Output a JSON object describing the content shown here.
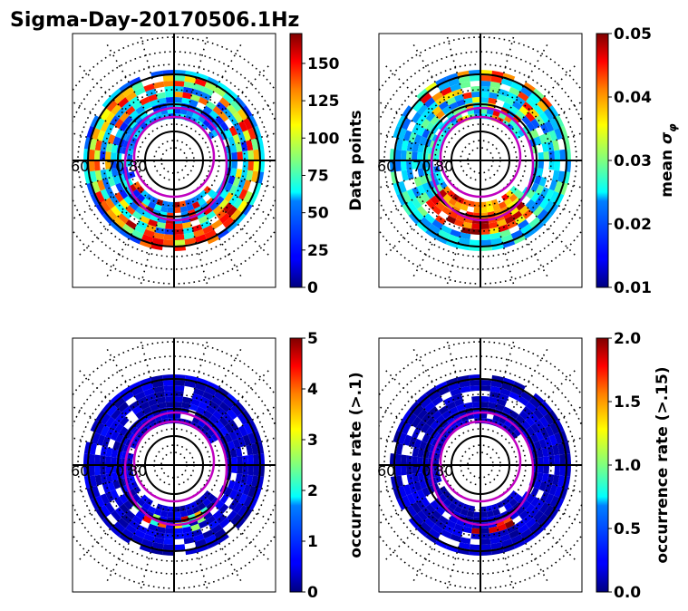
{
  "figure_title": "Sigma-Day-20170506.1Hz",
  "chart_data": [
    {
      "type": "heatmap",
      "projection": "polar",
      "latitude_rings": [
        60,
        70,
        80
      ],
      "ring_labels": [
        "60",
        "70",
        "80"
      ],
      "colorbar": {
        "label": "Data points",
        "min": 0,
        "max": 170,
        "ticks": [
          0,
          25,
          50,
          75,
          100,
          125,
          150
        ],
        "tick_labels": [
          "0",
          "25",
          "50",
          "75",
          "100",
          "125",
          "150"
        ],
        "colormap": "jet"
      },
      "grid": true
    },
    {
      "type": "heatmap",
      "projection": "polar",
      "latitude_rings": [
        60,
        70,
        80
      ],
      "ring_labels": [
        "60",
        "70",
        "80"
      ],
      "colorbar": {
        "label_main": "mean ",
        "label_symbol": "σ",
        "label_sub": "φ",
        "min": 0.01,
        "max": 0.05,
        "ticks": [
          0.01,
          0.02,
          0.03,
          0.04,
          0.05
        ],
        "tick_labels": [
          "0.01",
          "0.02",
          "0.03",
          "0.04",
          "0.05"
        ],
        "colormap": "jet"
      },
      "grid": true
    },
    {
      "type": "heatmap",
      "projection": "polar",
      "latitude_rings": [
        60,
        70,
        80
      ],
      "ring_labels": [
        "60",
        "70",
        "80"
      ],
      "colorbar": {
        "label": "occurrence rate (>.1)",
        "min": 0,
        "max": 5,
        "ticks": [
          0,
          1,
          2,
          3,
          4,
          5
        ],
        "tick_labels": [
          "0",
          "1",
          "2",
          "3",
          "4",
          "5"
        ],
        "colormap": "jet"
      },
      "grid": true
    },
    {
      "type": "heatmap",
      "projection": "polar",
      "latitude_rings": [
        60,
        70,
        80
      ],
      "ring_labels": [
        "60",
        "70",
        "80"
      ],
      "colorbar": {
        "label": "occurrence rate (>.15)",
        "min": 0.0,
        "max": 2.0,
        "ticks": [
          0.0,
          0.5,
          1.0,
          1.5,
          2.0
        ],
        "tick_labels": [
          "0.0",
          "0.5",
          "1.0",
          "1.5",
          "2.0"
        ],
        "colormap": "jet"
      },
      "grid": true
    }
  ],
  "colors": {
    "oval": "#c000c0",
    "grid_line": "#000000",
    "background": "#ffffff"
  }
}
